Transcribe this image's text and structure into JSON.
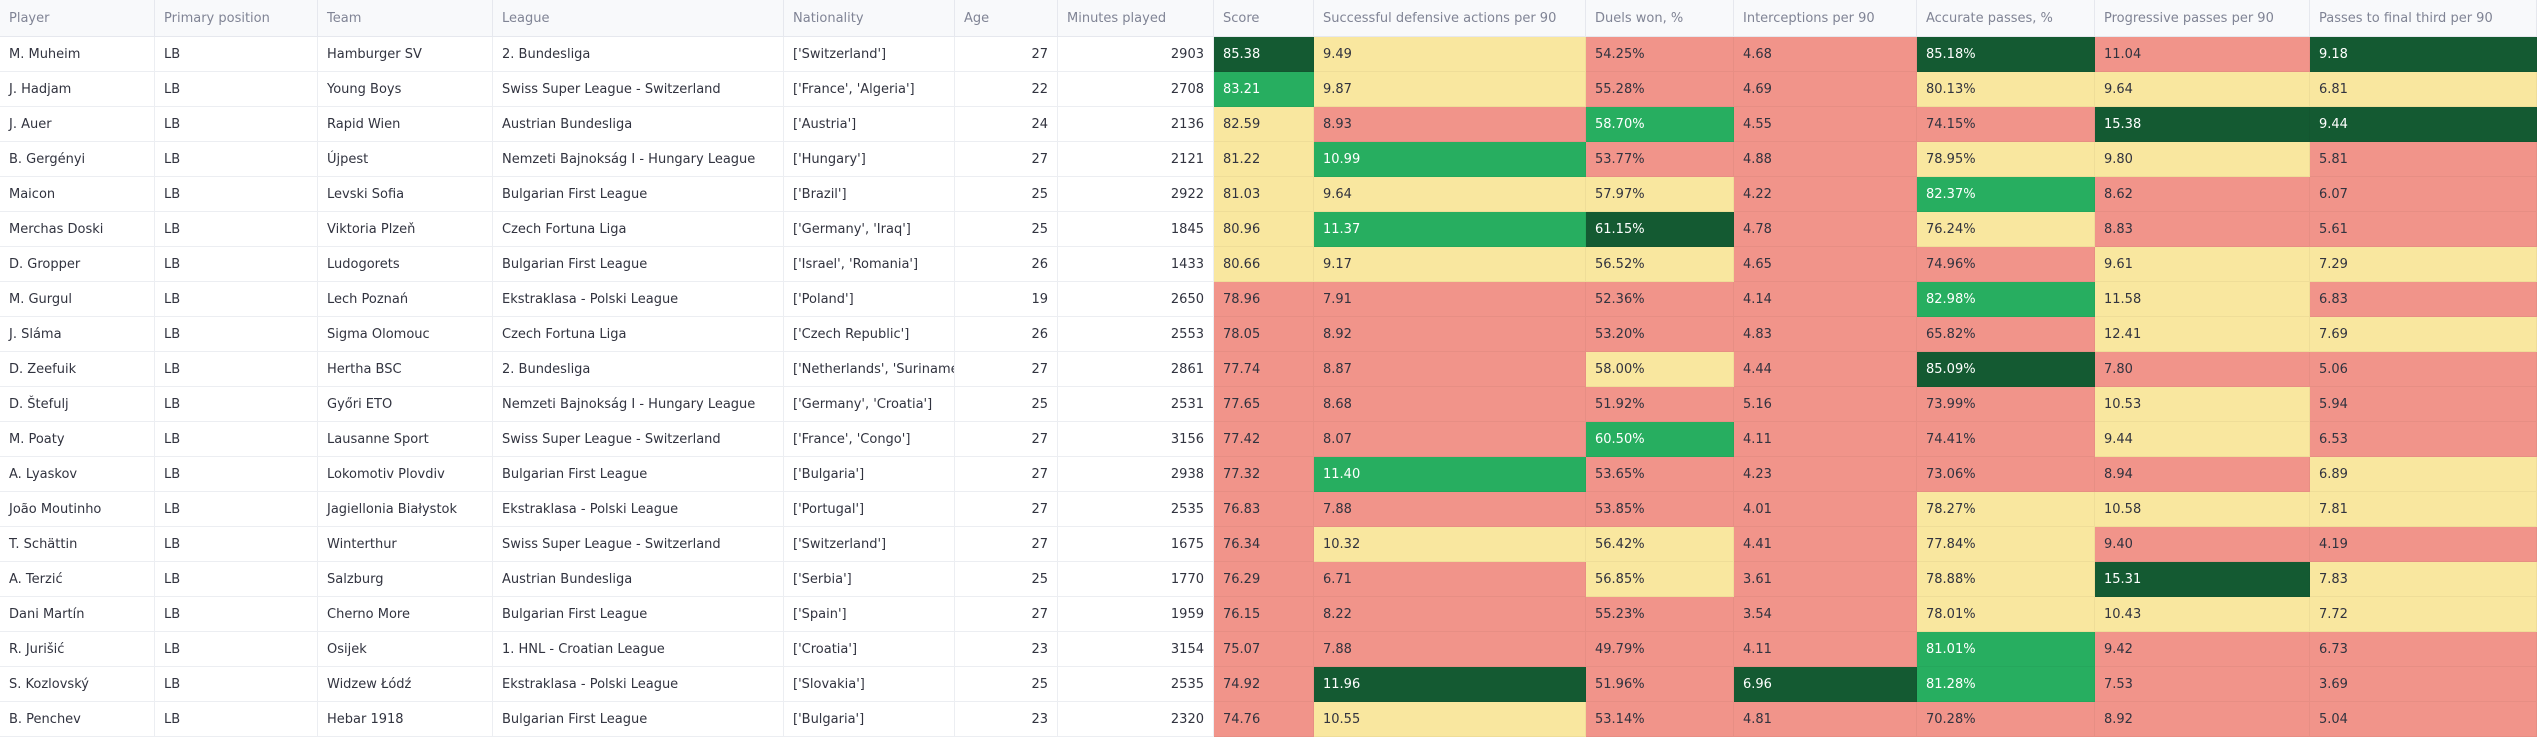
{
  "table": {
    "columns": [
      {
        "key": "player",
        "label": "Player"
      },
      {
        "key": "position",
        "label": "Primary position"
      },
      {
        "key": "team",
        "label": "Team"
      },
      {
        "key": "league",
        "label": "League"
      },
      {
        "key": "nationality",
        "label": "Nationality"
      },
      {
        "key": "age",
        "label": "Age"
      },
      {
        "key": "minutes",
        "label": "Minutes played"
      },
      {
        "key": "score",
        "label": "Score"
      },
      {
        "key": "def",
        "label": "Successful defensive actions per 90"
      },
      {
        "key": "duels",
        "label": "Duels won, %"
      },
      {
        "key": "int",
        "label": "Interceptions per 90"
      },
      {
        "key": "acc",
        "label": "Accurate passes, %"
      },
      {
        "key": "prog",
        "label": "Progressive passes per 90"
      },
      {
        "key": "final",
        "label": "Passes to final third per 90"
      }
    ],
    "rows": [
      [
        "M. Muheim",
        "LB",
        "Hamburger SV",
        "2. Bundesliga",
        "['Switzerland']",
        "27",
        "2903",
        "85.38",
        "9.49",
        "54.25%",
        "4.68",
        "85.18%",
        "11.04",
        "9.18"
      ],
      [
        "J. Hadjam",
        "LB",
        "Young Boys",
        "Swiss Super League - Switzerland",
        "['France', 'Algeria']",
        "22",
        "2708",
        "83.21",
        "9.87",
        "55.28%",
        "4.69",
        "80.13%",
        "9.64",
        "6.81"
      ],
      [
        "J. Auer",
        "LB",
        "Rapid Wien",
        "Austrian Bundesliga",
        "['Austria']",
        "24",
        "2136",
        "82.59",
        "8.93",
        "58.70%",
        "4.55",
        "74.15%",
        "15.38",
        "9.44"
      ],
      [
        "B. Gergényi",
        "LB",
        "Újpest",
        "Nemzeti Bajnokság I - Hungary League",
        "['Hungary']",
        "27",
        "2121",
        "81.22",
        "10.99",
        "53.77%",
        "4.88",
        "78.95%",
        "9.80",
        "5.81"
      ],
      [
        "Maicon",
        "LB",
        "Levski Sofia",
        "Bulgarian First League",
        "['Brazil']",
        "25",
        "2922",
        "81.03",
        "9.64",
        "57.97%",
        "4.22",
        "82.37%",
        "8.62",
        "6.07"
      ],
      [
        "Merchas Doski",
        "LB",
        "Viktoria Plzeň",
        "Czech Fortuna Liga",
        "['Germany', 'Iraq']",
        "25",
        "1845",
        "80.96",
        "11.37",
        "61.15%",
        "4.78",
        "76.24%",
        "8.83",
        "5.61"
      ],
      [
        "D. Gropper",
        "LB",
        "Ludogorets",
        "Bulgarian First League",
        "['Israel', 'Romania']",
        "26",
        "1433",
        "80.66",
        "9.17",
        "56.52%",
        "4.65",
        "74.96%",
        "9.61",
        "7.29"
      ],
      [
        "M. Gurgul",
        "LB",
        "Lech Poznań",
        "Ekstraklasa - Polski League",
        "['Poland']",
        "19",
        "2650",
        "78.96",
        "7.91",
        "52.36%",
        "4.14",
        "82.98%",
        "11.58",
        "6.83"
      ],
      [
        "J. Sláma",
        "LB",
        "Sigma Olomouc",
        "Czech Fortuna Liga",
        "['Czech Republic']",
        "26",
        "2553",
        "78.05",
        "8.92",
        "53.20%",
        "4.83",
        "65.82%",
        "12.41",
        "7.69"
      ],
      [
        "D. Zeefuik",
        "LB",
        "Hertha BSC",
        "2. Bundesliga",
        "['Netherlands', 'Suriname']",
        "27",
        "2861",
        "77.74",
        "8.87",
        "58.00%",
        "4.44",
        "85.09%",
        "7.80",
        "5.06"
      ],
      [
        "D. Štefulj",
        "LB",
        "Győri ETO",
        "Nemzeti Bajnokság I - Hungary League",
        "['Germany', 'Croatia']",
        "25",
        "2531",
        "77.65",
        "8.68",
        "51.92%",
        "5.16",
        "73.99%",
        "10.53",
        "5.94"
      ],
      [
        "M. Poaty",
        "LB",
        "Lausanne Sport",
        "Swiss Super League - Switzerland",
        "['France', 'Congo']",
        "27",
        "3156",
        "77.42",
        "8.07",
        "60.50%",
        "4.11",
        "74.41%",
        "9.44",
        "6.53"
      ],
      [
        "A. Lyaskov",
        "LB",
        "Lokomotiv Plovdiv",
        "Bulgarian First League",
        "['Bulgaria']",
        "27",
        "2938",
        "77.32",
        "11.40",
        "53.65%",
        "4.23",
        "73.06%",
        "8.94",
        "6.89"
      ],
      [
        "João Moutinho",
        "LB",
        "Jagiellonia Białystok",
        "Ekstraklasa - Polski League",
        "['Portugal']",
        "27",
        "2535",
        "76.83",
        "7.88",
        "53.85%",
        "4.01",
        "78.27%",
        "10.58",
        "7.81"
      ],
      [
        "T. Schättin",
        "LB",
        "Winterthur",
        "Swiss Super League - Switzerland",
        "['Switzerland']",
        "27",
        "1675",
        "76.34",
        "10.32",
        "56.42%",
        "4.41",
        "77.84%",
        "9.40",
        "4.19"
      ],
      [
        "A. Terzić",
        "LB",
        "Salzburg",
        "Austrian Bundesliga",
        "['Serbia']",
        "25",
        "1770",
        "76.29",
        "6.71",
        "56.85%",
        "3.61",
        "78.88%",
        "15.31",
        "7.83"
      ],
      [
        "Dani Martín",
        "LB",
        "Cherno More",
        "Bulgarian First League",
        "['Spain']",
        "27",
        "1959",
        "76.15",
        "8.22",
        "55.23%",
        "3.54",
        "78.01%",
        "10.43",
        "7.72"
      ],
      [
        "R. Jurišić",
        "LB",
        "Osijek",
        "1. HNL - Croatian League",
        "['Croatia']",
        "23",
        "3154",
        "75.07",
        "7.88",
        "49.79%",
        "4.11",
        "81.01%",
        "9.42",
        "6.73"
      ],
      [
        "S. Kozlovský",
        "LB",
        "Widzew Łódź",
        "Ekstraklasa - Polski League",
        "['Slovakia']",
        "25",
        "2535",
        "74.92",
        "11.96",
        "51.96%",
        "6.96",
        "81.28%",
        "7.53",
        "3.69"
      ],
      [
        "B. Penchev",
        "LB",
        "Hebar 1918",
        "Bulgarian First League",
        "['Bulgaria']",
        "23",
        "2320",
        "74.76",
        "10.55",
        "53.14%",
        "4.81",
        "70.28%",
        "8.92",
        "5.04"
      ]
    ],
    "cell_colors": [
      [
        "#145a32",
        "#f9e79f",
        "#f1948a",
        "#f1948a",
        "#145a32",
        "#f1948a",
        "#145a32"
      ],
      [
        "#27ae60",
        "#f9e79f",
        "#f1948a",
        "#f1948a",
        "#f9e79f",
        "#f9e79f",
        "#f9e79f"
      ],
      [
        "#f9e79f",
        "#f1948a",
        "#27ae60",
        "#f1948a",
        "#f1948a",
        "#145a32",
        "#145a32"
      ],
      [
        "#f9e79f",
        "#27ae60",
        "#f1948a",
        "#f1948a",
        "#f9e79f",
        "#f9e79f",
        "#f1948a"
      ],
      [
        "#f9e79f",
        "#f9e79f",
        "#f9e79f",
        "#f1948a",
        "#27ae60",
        "#f1948a",
        "#f1948a"
      ],
      [
        "#f9e79f",
        "#27ae60",
        "#145a32",
        "#f1948a",
        "#f9e79f",
        "#f1948a",
        "#f1948a"
      ],
      [
        "#f9e79f",
        "#f9e79f",
        "#f9e79f",
        "#f1948a",
        "#f1948a",
        "#f9e79f",
        "#f9e79f"
      ],
      [
        "#f1948a",
        "#f1948a",
        "#f1948a",
        "#f1948a",
        "#27ae60",
        "#f9e79f",
        "#f1948a"
      ],
      [
        "#f1948a",
        "#f1948a",
        "#f1948a",
        "#f1948a",
        "#f1948a",
        "#f9e79f",
        "#f9e79f"
      ],
      [
        "#f1948a",
        "#f1948a",
        "#f9e79f",
        "#f1948a",
        "#145a32",
        "#f1948a",
        "#f1948a"
      ],
      [
        "#f1948a",
        "#f1948a",
        "#f1948a",
        "#f1948a",
        "#f1948a",
        "#f9e79f",
        "#f1948a"
      ],
      [
        "#f1948a",
        "#f1948a",
        "#27ae60",
        "#f1948a",
        "#f1948a",
        "#f9e79f",
        "#f1948a"
      ],
      [
        "#f1948a",
        "#27ae60",
        "#f1948a",
        "#f1948a",
        "#f1948a",
        "#f1948a",
        "#f9e79f"
      ],
      [
        "#f1948a",
        "#f1948a",
        "#f1948a",
        "#f1948a",
        "#f9e79f",
        "#f9e79f",
        "#f9e79f"
      ],
      [
        "#f1948a",
        "#f9e79f",
        "#f9e79f",
        "#f1948a",
        "#f9e79f",
        "#f1948a",
        "#f1948a"
      ],
      [
        "#f1948a",
        "#f1948a",
        "#f9e79f",
        "#f1948a",
        "#f9e79f",
        "#145a32",
        "#f9e79f"
      ],
      [
        "#f1948a",
        "#f1948a",
        "#f1948a",
        "#f1948a",
        "#f9e79f",
        "#f9e79f",
        "#f9e79f"
      ],
      [
        "#f1948a",
        "#f1948a",
        "#f1948a",
        "#f1948a",
        "#27ae60",
        "#f1948a",
        "#f1948a"
      ],
      [
        "#f1948a",
        "#145a32",
        "#f1948a",
        "#145a32",
        "#27ae60",
        "#f1948a",
        "#f1948a"
      ],
      [
        "#f1948a",
        "#f9e79f",
        "#f1948a",
        "#f1948a",
        "#f1948a",
        "#f1948a",
        "#f1948a"
      ]
    ]
  }
}
